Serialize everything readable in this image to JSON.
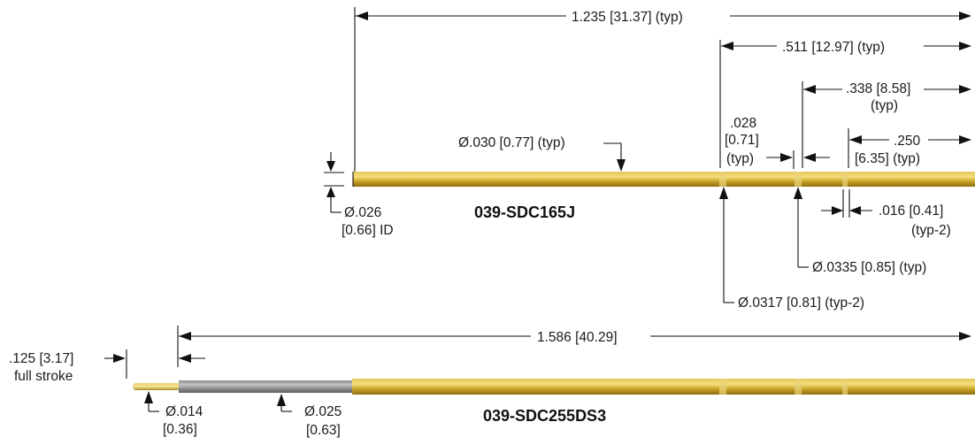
{
  "colors": {
    "tube_gold": "#c9a227",
    "tube_highlight": "#f2db73",
    "tube_shadow": "#9c7a12",
    "barrel_gray": "#9a9a9a",
    "ink": "#111111"
  },
  "part_top": {
    "name": "039-SDC165J",
    "dims": {
      "overall": "1.235 [31.37] (typ)",
      "d511": ".511 [12.97] (typ)",
      "d338_line1": ".338 [8.58]",
      "d338_line2": "(typ)",
      "d028_line1": ".028",
      "d028_line2": "[0.71]",
      "d028_line3": "(typ)",
      "d250_line1": ".250",
      "d250_line2": "[6.35] (typ)",
      "dia030": "Ø.030 [0.77] (typ)",
      "dia026_line1": "Ø.026",
      "dia026_line2": "[0.66] ID",
      "d016_line1": ".016 [0.41]",
      "d016_line2": "(typ-2)",
      "dia0335": "Ø.0335 [0.85] (typ)",
      "dia0317": "Ø.0317 [0.81] (typ-2)"
    }
  },
  "part_bottom": {
    "name": "039-SDC255DS3",
    "dims": {
      "overall": "1.586 [40.29]",
      "stroke_line1": ".125 [3.17]",
      "stroke_line2": "full stroke",
      "dia014_line1": "Ø.014",
      "dia014_line2": "[0.36]",
      "dia025_line1": "Ø.025",
      "dia025_line2": "[0.63]"
    }
  }
}
